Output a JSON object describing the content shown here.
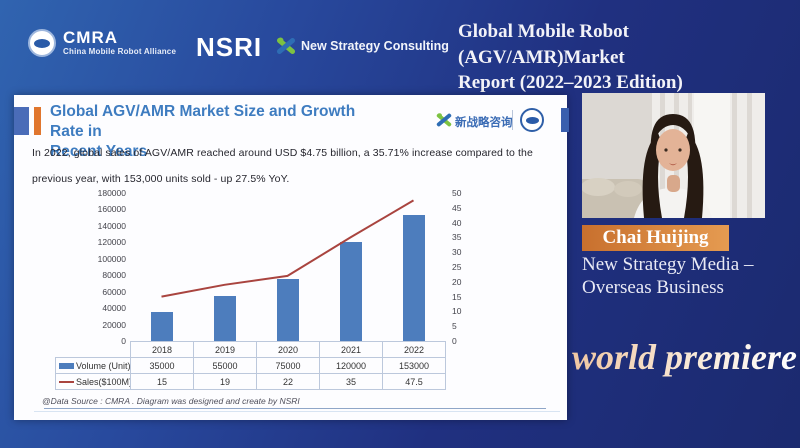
{
  "header": {
    "cmra_acronym": "CMRA",
    "cmra_full": "China Mobile Robot Alliance",
    "nsri": "NSRI",
    "nsc_name": "New Strategy Consulting",
    "title_line1": "Global Mobile Robot (AGV/AMR)Market",
    "title_line2": "Report (2022–2023 Edition)"
  },
  "slide": {
    "title_line1": "Global AGV/AMR Market Size and Growth Rate in",
    "title_line2": "Recent Years",
    "logo_cn": "新战略咨询",
    "body_line1": "In 2022, global sales of AGV/AMR reached around USD $4.75 billion, a 35.71% increase compared to the",
    "body_line2": "previous year, with 153,000 units sold - up 27.5% YoY.",
    "source_note": "@Data Source : CMRA . Diagram was designed and create by NSRI"
  },
  "chart_data": {
    "type": "bar",
    "title": "Global AGV/AMR Market Size and Growth Rate in Recent Years",
    "categories": [
      "2018",
      "2019",
      "2020",
      "2021",
      "2022"
    ],
    "series": [
      {
        "name": "Volume (Unit)",
        "type": "bar",
        "axis": "left",
        "color": "#4d7dbd",
        "values": [
          35000,
          55000,
          75000,
          120000,
          153000
        ]
      },
      {
        "name": "Sales($100M)",
        "type": "line",
        "axis": "right",
        "color": "#a9443f",
        "values": [
          15,
          19,
          22,
          35,
          47.5
        ]
      }
    ],
    "left_axis": {
      "min": 0,
      "max": 180000,
      "step": 20000
    },
    "right_axis": {
      "min": 0,
      "max": 50,
      "step": 5
    },
    "grid": false,
    "legend_position": "table-left"
  },
  "speaker": {
    "name": "Chai Huijing",
    "org_line1": "New Strategy Media –",
    "org_line2": "Overseas Business"
  },
  "banner": "world premiere"
}
